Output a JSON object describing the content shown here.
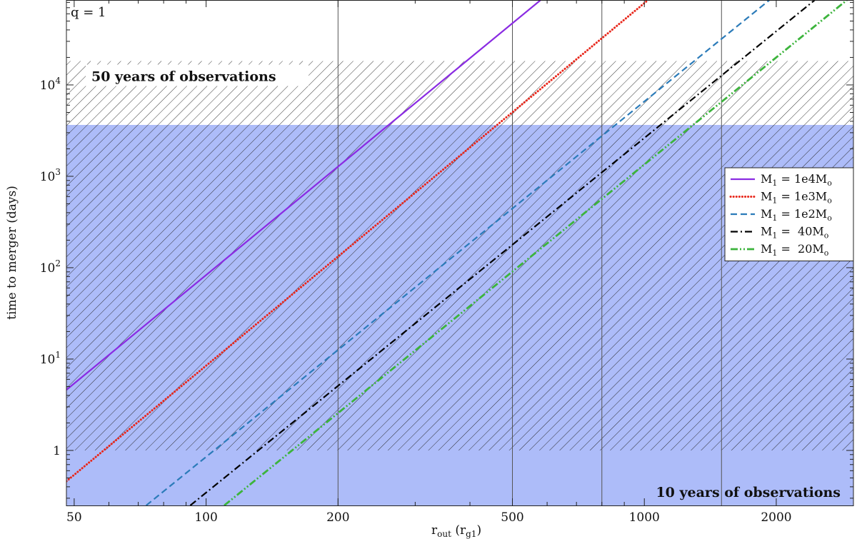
{
  "chart_data": {
    "type": "line",
    "title": "",
    "corner_label": "q = 1",
    "xlabel": "r_out (r_g1)",
    "xlabel_main": "r",
    "xlabel_sub": "out",
    "xlabel_paren_main": "r",
    "xlabel_paren_sub": "g1",
    "ylabel": "time to merger (days)",
    "x_scale": "log",
    "y_scale": "log",
    "xlim": [
      48,
      3000
    ],
    "ylim": [
      0.25,
      85000
    ],
    "x_ticks": [
      {
        "value": 50,
        "label": "50"
      },
      {
        "value": 100,
        "label": "100"
      },
      {
        "value": 200,
        "label": "200"
      },
      {
        "value": 500,
        "label": "500"
      },
      {
        "value": 1000,
        "label": "1000"
      },
      {
        "value": 2000,
        "label": "2000"
      }
    ],
    "y_ticks": [
      {
        "value": 1,
        "base": "1",
        "exp": ""
      },
      {
        "value": 10,
        "base": "10",
        "exp": "1"
      },
      {
        "value": 100,
        "base": "10",
        "exp": "2"
      },
      {
        "value": 1000,
        "base": "10",
        "exp": "3"
      },
      {
        "value": 10000,
        "base": "10",
        "exp": "4"
      }
    ],
    "vertical_lines": [
      200,
      500,
      800,
      1500
    ],
    "bands": [
      {
        "label": "50 years of observations",
        "y_min": 1,
        "y_max": 18262,
        "style": "hatch"
      },
      {
        "label": "10 years of observations",
        "y_min": 0.25,
        "y_max": 3652,
        "style": "fill",
        "color": "#adbcf9"
      }
    ],
    "series": [
      {
        "name": "M1 = 1e4Mo",
        "legend_main": "M",
        "legend_sub": "1",
        "legend_eq": " = 1e4M",
        "legend_odot": "o",
        "color": "#8a2be2",
        "dash": "solid",
        "x": [
          48,
          580
        ],
        "y": [
          4.6,
          85000
        ]
      },
      {
        "name": "M1 = 1e3Mo",
        "legend_main": "M",
        "legend_sub": "1",
        "legend_eq": " = 1e3M",
        "legend_odot": "o",
        "color": "#e8281c",
        "dash": "dotted",
        "x": [
          48,
          1020
        ],
        "y": [
          0.46,
          85000
        ]
      },
      {
        "name": "M1 = 1e2Mo",
        "legend_main": "M",
        "legend_sub": "1",
        "legend_eq": " = 1e2M",
        "legend_odot": "o",
        "color": "#2b7bb9",
        "dash": "dashed",
        "x": [
          73,
          1930
        ],
        "y": [
          0.25,
          85000
        ]
      },
      {
        "name": "M1 = 40Mo",
        "legend_main": "M",
        "legend_sub": "1",
        "legend_eq": " =  40M",
        "legend_odot": "o",
        "color": "#000000",
        "dash": "dashdot",
        "x": [
          92,
          2450
        ],
        "y": [
          0.25,
          85000
        ]
      },
      {
        "name": "M1 = 20Mo",
        "legend_main": "M",
        "legend_sub": "1",
        "legend_eq": " =  20M",
        "legend_odot": "o",
        "color": "#3cb43c",
        "dash": "dashdotdot",
        "x": [
          110,
          2900
        ],
        "y": [
          0.25,
          85000
        ]
      }
    ],
    "legend_position": "center-right",
    "grid": false
  }
}
